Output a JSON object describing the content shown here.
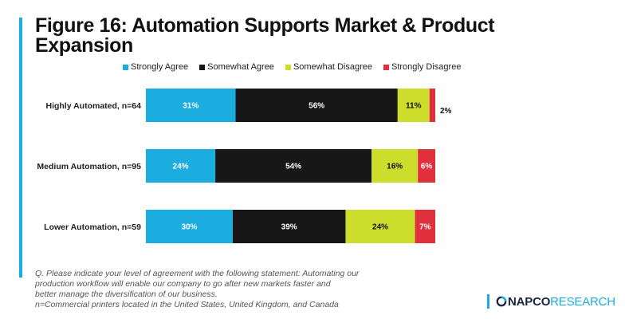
{
  "title": "Figure 16: Automation Supports Market & Product Expansion",
  "colors": {
    "accent": "#1bace0",
    "strongly_agree": "#1bace0",
    "somewhat_agree": "#171717",
    "somewhat_disagree": "#cddd2c",
    "strongly_disagree": "#e0303c"
  },
  "chart_data": {
    "type": "bar",
    "orientation": "horizontal",
    "stacked": true,
    "xlim": [
      0,
      100
    ],
    "grid": false,
    "legend_position": "top",
    "categories": [
      "Highly Automated, n=64",
      "Medium Automation, n=95",
      "Lower Automation, n=59"
    ],
    "series": [
      {
        "name": "Strongly Agree",
        "values": [
          31,
          24,
          30
        ],
        "labels": [
          "31%",
          "24%",
          "30%"
        ]
      },
      {
        "name": "Somewhat Agree",
        "values": [
          56,
          54,
          39
        ],
        "labels": [
          "56%",
          "54%",
          "39%"
        ]
      },
      {
        "name": "Somewhat Disagree",
        "values": [
          11,
          16,
          24
        ],
        "labels": [
          "11%",
          "16%",
          "24%"
        ]
      },
      {
        "name": "Strongly Disagree",
        "values": [
          2,
          6,
          7
        ],
        "labels": [
          "2%",
          "6%",
          "7%"
        ]
      }
    ]
  },
  "footnote": {
    "line1": "Q. Please indicate your level of agreement with the following statement: Automating our",
    "line2": "production workflow will enable our company to go after new markets faster and",
    "line3": "better manage the diversification of our business.",
    "line4": "n=Commercial printers located in the United States, United Kingdom, and Canada"
  },
  "logo": {
    "napco": "NAPCO",
    "research": "RESEARCH"
  }
}
